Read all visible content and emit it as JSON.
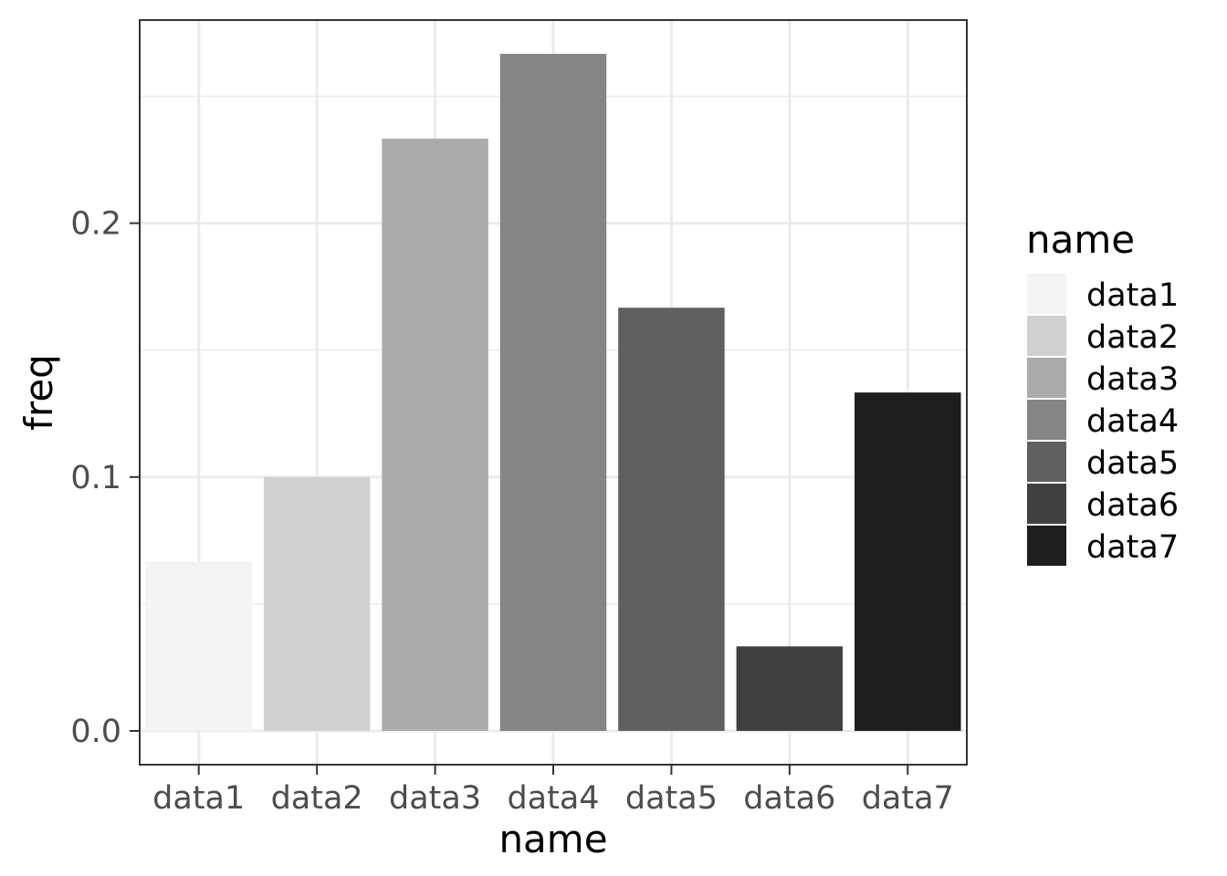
{
  "chart_data": {
    "type": "bar",
    "categories": [
      "data1",
      "data2",
      "data3",
      "data4",
      "data5",
      "data6",
      "data7"
    ],
    "values": [
      0.0667,
      0.1,
      0.2333,
      0.2667,
      0.1667,
      0.0333,
      0.1333
    ],
    "colors": [
      "#f4f4f4",
      "#d0d0d0",
      "#ababab",
      "#858585",
      "#606060",
      "#404040",
      "#1e1e1e"
    ],
    "xlabel": "name",
    "ylabel": "freq",
    "ylim": [
      -0.0133,
      0.28
    ],
    "yticks": [
      0.0,
      0.1,
      0.2
    ],
    "ytick_labels": [
      "0.0",
      "0.1",
      "0.2"
    ],
    "yminor": [
      0.05,
      0.15,
      0.25
    ],
    "grid": true,
    "legend": {
      "title": "name",
      "placement": "right",
      "entries": [
        "data1",
        "data2",
        "data3",
        "data4",
        "data5",
        "data6",
        "data7"
      ]
    }
  }
}
